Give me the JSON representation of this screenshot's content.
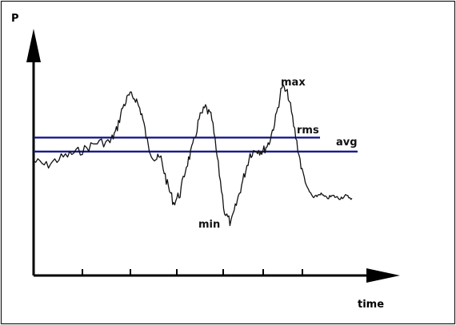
{
  "chart_data": {
    "type": "line",
    "title": "",
    "xlabel": "time",
    "ylabel": "P",
    "grid": false,
    "legend": "none",
    "axis_tick_labels": false,
    "series": [
      {
        "x": [
          0,
          4,
          8,
          12,
          16,
          20,
          24,
          26,
          28,
          30,
          32,
          34,
          36,
          38,
          40,
          42,
          44,
          46,
          48,
          50,
          52,
          54,
          56,
          58,
          60,
          62,
          64,
          66,
          68,
          70,
          72,
          74,
          76,
          78,
          80,
          82,
          84,
          86,
          88,
          90,
          92,
          94,
          96,
          98,
          100
        ],
        "values": [
          0.32,
          0.3,
          0.33,
          0.35,
          0.37,
          0.4,
          0.4,
          0.45,
          0.55,
          0.6,
          0.59,
          0.52,
          0.38,
          0.33,
          0.33,
          0.22,
          0.14,
          0.18,
          0.3,
          0.38,
          0.5,
          0.55,
          0.5,
          0.3,
          0.1,
          0.05,
          0.15,
          0.25,
          0.35,
          0.37,
          0.36,
          0.4,
          0.5,
          0.64,
          0.6,
          0.45,
          0.3,
          0.2,
          0.16,
          0.18,
          0.16,
          0.17,
          0.16,
          0.17,
          0.16
        ]
      }
    ],
    "reference_lines": [
      {
        "label": "rms",
        "value": 0.42,
        "color": "#1a1a8c"
      },
      {
        "label": "avg",
        "value": 0.36,
        "color": "#1a1a8c"
      }
    ],
    "annotations": [
      "max",
      "min",
      "rms",
      "avg"
    ]
  }
}
